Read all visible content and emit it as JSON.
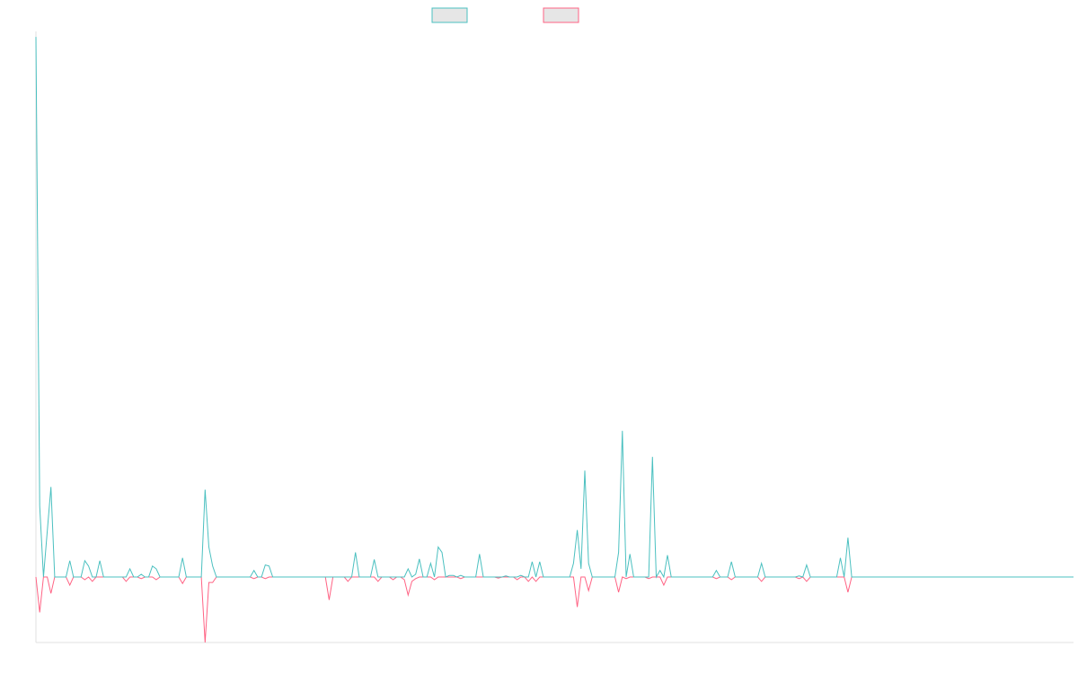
{
  "chart_data": {
    "type": "line",
    "legend_placement": "top-center",
    "grid": false,
    "ylim": [
      -1.2,
      10
    ],
    "series": [
      {
        "color": "#4bc0c0",
        "points": [
          [
            0.0,
            9.9
          ],
          [
            0.5,
            1.3
          ],
          [
            1.0,
            0.0
          ],
          [
            2.0,
            1.65
          ],
          [
            2.5,
            0.0
          ],
          [
            4.0,
            0.0
          ],
          [
            4.5,
            0.3
          ],
          [
            5.0,
            0.0
          ],
          [
            6.0,
            0.0
          ],
          [
            6.5,
            0.3
          ],
          [
            7.0,
            0.2
          ],
          [
            7.5,
            0.0
          ],
          [
            8.0,
            0.0
          ],
          [
            8.5,
            0.3
          ],
          [
            9.0,
            0.0
          ],
          [
            12.0,
            0.0
          ],
          [
            12.5,
            0.15
          ],
          [
            13.0,
            0.0
          ],
          [
            13.5,
            0.0
          ],
          [
            14.0,
            0.05
          ],
          [
            14.5,
            0.0
          ],
          [
            15.0,
            0.0
          ],
          [
            15.5,
            0.2
          ],
          [
            16.0,
            0.15
          ],
          [
            16.5,
            0.0
          ],
          [
            19.0,
            0.0
          ],
          [
            19.5,
            0.35
          ],
          [
            20.0,
            0.0
          ],
          [
            22.0,
            0.0
          ],
          [
            22.5,
            1.6
          ],
          [
            23.0,
            0.55
          ],
          [
            23.5,
            0.2
          ],
          [
            24.0,
            0.0
          ],
          [
            28.5,
            0.0
          ],
          [
            29.0,
            0.12
          ],
          [
            29.5,
            0.0
          ],
          [
            30.0,
            0.0
          ],
          [
            30.5,
            0.22
          ],
          [
            31.0,
            0.2
          ],
          [
            31.5,
            0.0
          ],
          [
            42.0,
            0.0
          ],
          [
            42.5,
            0.45
          ],
          [
            43.0,
            0.0
          ],
          [
            44.5,
            0.0
          ],
          [
            45.0,
            0.32
          ],
          [
            45.5,
            0.0
          ],
          [
            49.0,
            0.0
          ],
          [
            49.5,
            0.15
          ],
          [
            50.0,
            0.0
          ],
          [
            50.5,
            0.05
          ],
          [
            51.0,
            0.33
          ],
          [
            51.5,
            0.0
          ],
          [
            52.0,
            0.0
          ],
          [
            52.5,
            0.25
          ],
          [
            53.0,
            0.0
          ],
          [
            53.5,
            0.55
          ],
          [
            54.0,
            0.45
          ],
          [
            54.5,
            0.0
          ],
          [
            55.0,
            0.03
          ],
          [
            55.5,
            0.03
          ],
          [
            56.0,
            0.0
          ],
          [
            56.5,
            0.03
          ],
          [
            57.0,
            0.0
          ],
          [
            58.5,
            0.0
          ],
          [
            59.0,
            0.42
          ],
          [
            59.5,
            0.0
          ],
          [
            62.0,
            0.0
          ],
          [
            62.5,
            0.02
          ],
          [
            63.0,
            0.0
          ],
          [
            64.0,
            0.0
          ],
          [
            64.5,
            0.03
          ],
          [
            65.0,
            0.0
          ],
          [
            65.5,
            0.0
          ],
          [
            66.0,
            0.28
          ],
          [
            66.5,
            0.0
          ],
          [
            67.0,
            0.28
          ],
          [
            67.5,
            0.0
          ],
          [
            71.0,
            0.0
          ],
          [
            71.5,
            0.25
          ],
          [
            72.0,
            0.86
          ],
          [
            72.5,
            0.15
          ],
          [
            73.0,
            1.95
          ],
          [
            73.5,
            0.25
          ],
          [
            74.0,
            0.0
          ],
          [
            77.0,
            0.0
          ],
          [
            77.5,
            0.45
          ],
          [
            78.0,
            2.68
          ],
          [
            78.5,
            0.0
          ],
          [
            79.0,
            0.42
          ],
          [
            79.5,
            0.0
          ],
          [
            81.5,
            0.0
          ],
          [
            82.0,
            2.2
          ],
          [
            82.5,
            0.0
          ],
          [
            83.0,
            0.12
          ],
          [
            83.5,
            0.0
          ],
          [
            84.0,
            0.4
          ],
          [
            84.5,
            0.0
          ],
          [
            90.0,
            0.0
          ],
          [
            90.5,
            0.12
          ],
          [
            91.0,
            0.0
          ],
          [
            92.0,
            0.0
          ],
          [
            92.5,
            0.28
          ],
          [
            93.0,
            0.0
          ],
          [
            96.0,
            0.0
          ],
          [
            96.5,
            0.25
          ],
          [
            97.0,
            0.0
          ],
          [
            101.0,
            0.0
          ],
          [
            101.5,
            0.02
          ],
          [
            102.0,
            0.0
          ],
          [
            102.5,
            0.22
          ],
          [
            103.0,
            0.0
          ],
          [
            106.5,
            0.0
          ],
          [
            107.0,
            0.35
          ],
          [
            107.5,
            0.0
          ],
          [
            108.0,
            0.72
          ],
          [
            108.5,
            0.0
          ],
          [
            138.0,
            0.0
          ]
        ]
      },
      {
        "color": "#ff6384",
        "points": [
          [
            0.0,
            0.0
          ],
          [
            0.5,
            -0.65
          ],
          [
            1.0,
            0.0
          ],
          [
            1.5,
            0.0
          ],
          [
            2.0,
            -0.3
          ],
          [
            2.5,
            0.0
          ],
          [
            4.0,
            0.0
          ],
          [
            4.5,
            -0.15
          ],
          [
            5.0,
            0.0
          ],
          [
            6.0,
            0.0
          ],
          [
            6.5,
            -0.05
          ],
          [
            7.0,
            0.0
          ],
          [
            7.5,
            -0.08
          ],
          [
            8.0,
            0.0
          ],
          [
            11.5,
            0.0
          ],
          [
            12.0,
            -0.08
          ],
          [
            12.5,
            0.0
          ],
          [
            13.5,
            0.0
          ],
          [
            14.0,
            -0.03
          ],
          [
            14.5,
            0.0
          ],
          [
            15.5,
            0.0
          ],
          [
            16.0,
            -0.05
          ],
          [
            16.5,
            0.0
          ],
          [
            19.0,
            0.0
          ],
          [
            19.5,
            -0.12
          ],
          [
            20.0,
            0.0
          ],
          [
            22.0,
            0.0
          ],
          [
            22.5,
            -1.2
          ],
          [
            23.0,
            -0.1
          ],
          [
            23.5,
            -0.1
          ],
          [
            24.0,
            0.0
          ],
          [
            28.5,
            0.0
          ],
          [
            29.0,
            -0.03
          ],
          [
            29.5,
            0.0
          ],
          [
            30.0,
            0.0
          ],
          [
            30.5,
            -0.03
          ],
          [
            31.0,
            0.0
          ],
          [
            38.5,
            0.0
          ],
          [
            39.0,
            -0.42
          ],
          [
            39.5,
            0.0
          ],
          [
            41.0,
            0.0
          ],
          [
            41.5,
            -0.08
          ],
          [
            42.0,
            0.0
          ],
          [
            45.0,
            0.0
          ],
          [
            45.5,
            -0.08
          ],
          [
            46.0,
            0.0
          ],
          [
            47.0,
            0.0
          ],
          [
            47.5,
            -0.05
          ],
          [
            48.0,
            0.0
          ],
          [
            48.5,
            0.0
          ],
          [
            49.0,
            -0.05
          ],
          [
            49.5,
            -0.33
          ],
          [
            50.0,
            -0.08
          ],
          [
            50.5,
            -0.03
          ],
          [
            51.0,
            0.0
          ],
          [
            52.5,
            0.0
          ],
          [
            53.0,
            -0.05
          ],
          [
            53.5,
            0.0
          ],
          [
            56.0,
            0.0
          ],
          [
            56.5,
            -0.03
          ],
          [
            57.0,
            0.0
          ],
          [
            61.0,
            0.0
          ],
          [
            61.5,
            -0.02
          ],
          [
            62.0,
            0.0
          ],
          [
            63.5,
            0.0
          ],
          [
            64.0,
            -0.05
          ],
          [
            64.5,
            0.0
          ],
          [
            65.0,
            0.0
          ],
          [
            65.5,
            -0.08
          ],
          [
            66.0,
            0.0
          ],
          [
            66.5,
            -0.08
          ],
          [
            67.0,
            0.0
          ],
          [
            71.5,
            0.0
          ],
          [
            72.0,
            -0.55
          ],
          [
            72.5,
            0.0
          ],
          [
            73.0,
            0.0
          ],
          [
            73.5,
            -0.25
          ],
          [
            74.0,
            0.0
          ],
          [
            77.0,
            0.0
          ],
          [
            77.5,
            -0.28
          ],
          [
            78.0,
            0.0
          ],
          [
            78.5,
            -0.03
          ],
          [
            79.0,
            0.0
          ],
          [
            81.0,
            0.0
          ],
          [
            81.5,
            -0.03
          ],
          [
            82.0,
            0.0
          ],
          [
            83.0,
            0.0
          ],
          [
            83.5,
            -0.15
          ],
          [
            84.0,
            0.0
          ],
          [
            90.0,
            0.0
          ],
          [
            90.5,
            -0.03
          ],
          [
            91.0,
            0.0
          ],
          [
            92.0,
            0.0
          ],
          [
            92.5,
            -0.05
          ],
          [
            93.0,
            0.0
          ],
          [
            96.0,
            0.0
          ],
          [
            96.5,
            -0.08
          ],
          [
            97.0,
            0.0
          ],
          [
            101.0,
            0.0
          ],
          [
            101.5,
            -0.03
          ],
          [
            102.0,
            0.0
          ],
          [
            102.5,
            -0.08
          ],
          [
            103.0,
            0.0
          ],
          [
            107.5,
            0.0
          ],
          [
            108.0,
            -0.28
          ],
          [
            108.5,
            0.0
          ],
          [
            138.0,
            0.0
          ]
        ]
      }
    ]
  }
}
